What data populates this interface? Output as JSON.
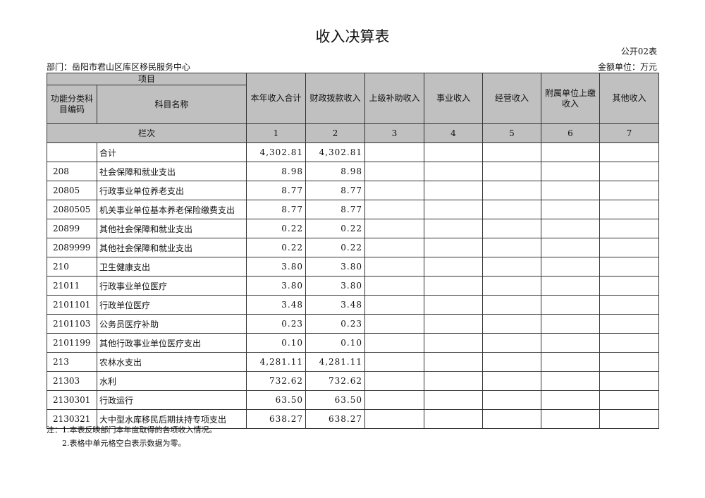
{
  "title": "收入决算表",
  "form_code": "公开02表",
  "department": "部门：岳阳市君山区库区移民服务中心",
  "unit": "金额单位：万元",
  "header": {
    "item": "项目",
    "code": "功能分类科目编码",
    "name": "科目名称",
    "cols": [
      "本年收入合计",
      "财政拨款收入",
      "上级补助收入",
      "事业收入",
      "经营收入",
      "附属单位上缴收入",
      "其他收入"
    ],
    "seq_label": "栏次",
    "seq": [
      "1",
      "2",
      "3",
      "4",
      "5",
      "6",
      "7"
    ]
  },
  "rows": [
    {
      "code": "",
      "name": "合计",
      "c1": "4,302.81",
      "c2": "4,302.81"
    },
    {
      "code": "208",
      "name": "社会保障和就业支出",
      "c1": "8.98",
      "c2": "8.98"
    },
    {
      "code": "20805",
      "name": "行政事业单位养老支出",
      "c1": "8.77",
      "c2": "8.77"
    },
    {
      "code": "2080505",
      "name": "机关事业单位基本养老保险缴费支出",
      "c1": "8.77",
      "c2": "8.77"
    },
    {
      "code": "20899",
      "name": "其他社会保障和就业支出",
      "c1": "0.22",
      "c2": "0.22"
    },
    {
      "code": "2089999",
      "name": "其他社会保障和就业支出",
      "c1": "0.22",
      "c2": "0.22"
    },
    {
      "code": "210",
      "name": "卫生健康支出",
      "c1": "3.80",
      "c2": "3.80"
    },
    {
      "code": "21011",
      "name": "行政事业单位医疗",
      "c1": "3.80",
      "c2": "3.80"
    },
    {
      "code": "2101101",
      "name": "行政单位医疗",
      "c1": "3.48",
      "c2": "3.48"
    },
    {
      "code": "2101103",
      "name": "公务员医疗补助",
      "c1": "0.23",
      "c2": "0.23"
    },
    {
      "code": "2101199",
      "name": "其他行政事业单位医疗支出",
      "c1": "0.10",
      "c2": "0.10"
    },
    {
      "code": "213",
      "name": "农林水支出",
      "c1": "4,281.11",
      "c2": "4,281.11"
    },
    {
      "code": "21303",
      "name": "水利",
      "c1": "732.62",
      "c2": "732.62"
    },
    {
      "code": "2130301",
      "name": "行政运行",
      "c1": "63.50",
      "c2": "63.50"
    },
    {
      "code": "2130321",
      "name": "大中型水库移民后期扶持专项支出",
      "c1": "638.27",
      "c2": "638.27"
    }
  ],
  "notes": [
    "注：1.本表反映部门本年度取得的各项收入情况。",
    "　　2.表格中单元格空白表示数据为零。"
  ]
}
